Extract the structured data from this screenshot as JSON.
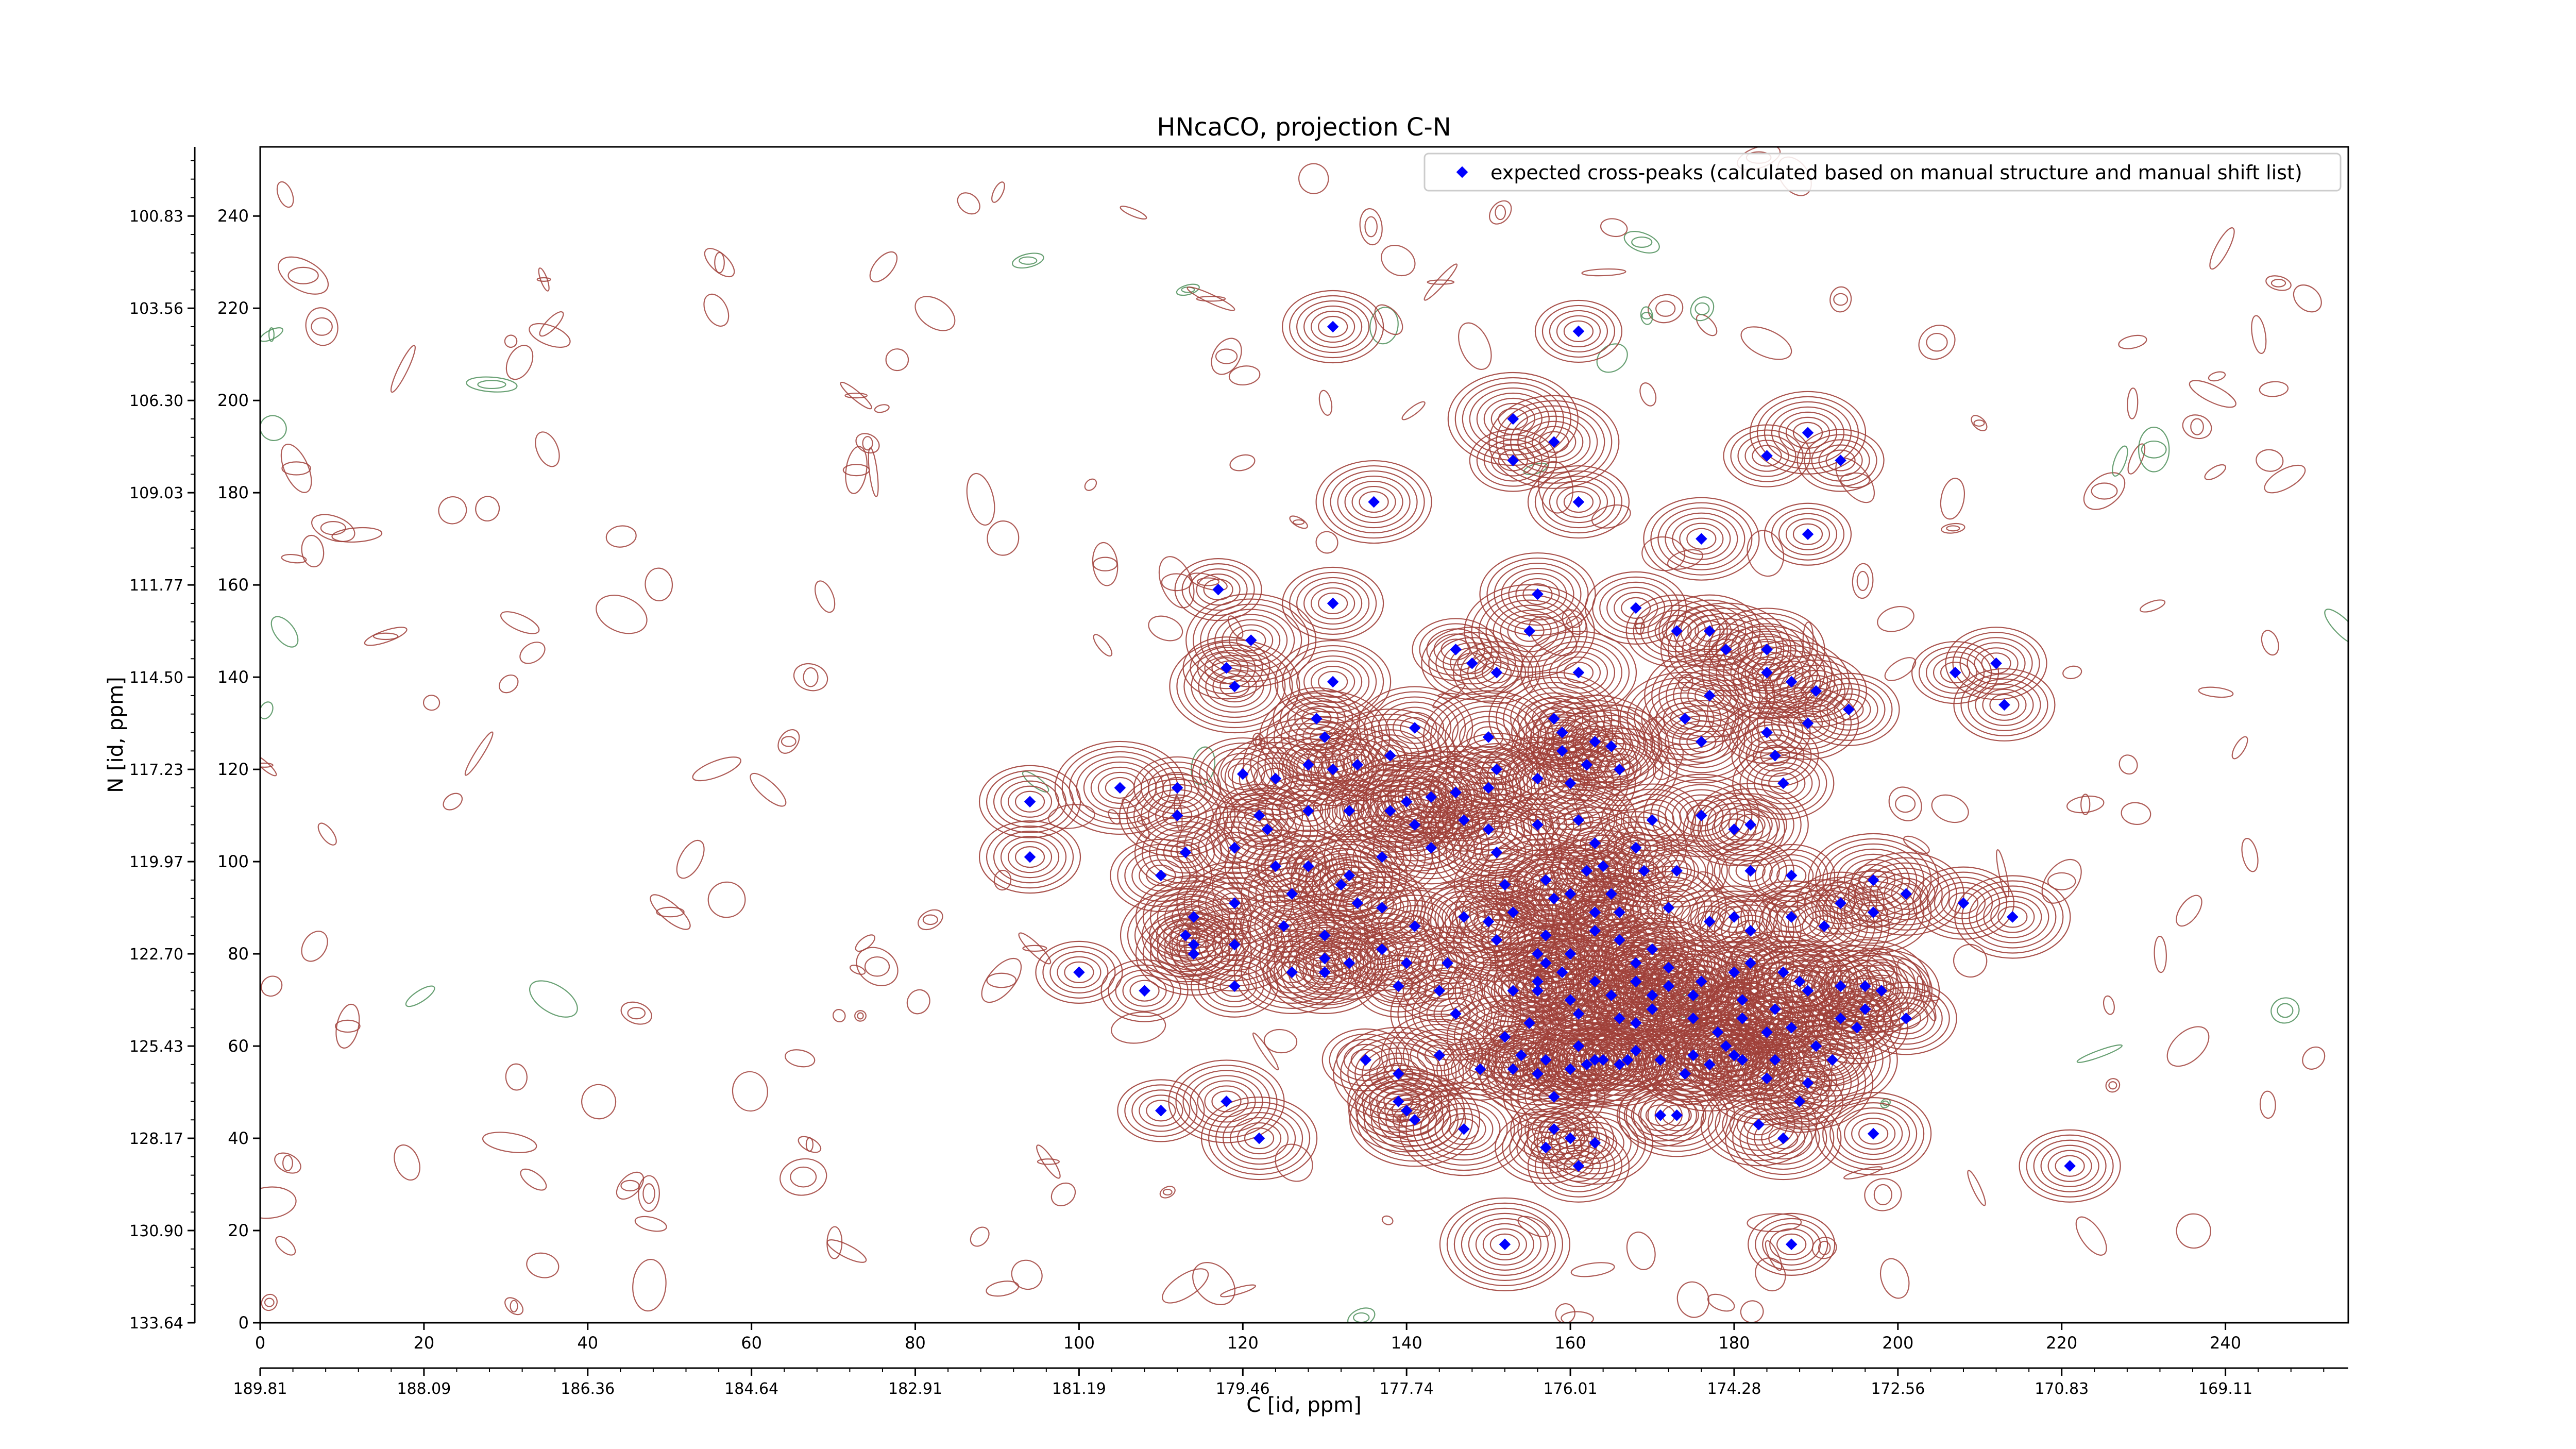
{
  "chart_data": {
    "type": "scatter",
    "title": "HNcaCO, projection C-N",
    "xlabel": "C [id, ppm]",
    "ylabel": "N [id, ppm]",
    "xlim": [
      0,
      255
    ],
    "ylim": [
      0,
      255
    ],
    "x_ticks": [
      "0",
      "20",
      "40",
      "60",
      "80",
      "100",
      "120",
      "140",
      "160",
      "180",
      "200",
      "220",
      "240"
    ],
    "x_ppm_ticks": [
      "189.81",
      "188.09",
      "186.36",
      "184.64",
      "182.91",
      "181.19",
      "179.46",
      "177.74",
      "176.01",
      "174.28",
      "172.56",
      "170.83",
      "169.11"
    ],
    "y_ticks": [
      "0",
      "20",
      "40",
      "60",
      "80",
      "100",
      "120",
      "140",
      "160",
      "180",
      "200",
      "220",
      "240"
    ],
    "y_ppm_ticks": [
      "133.64",
      "130.90",
      "128.17",
      "125.43",
      "122.70",
      "119.97",
      "117.23",
      "114.50",
      "111.77",
      "109.03",
      "106.30",
      "103.56",
      "100.83"
    ],
    "legend": {
      "position": "top-right",
      "entries": [
        "expected cross-peaks (calculated based on manual structure and manual shift list)"
      ]
    },
    "colors": {
      "points": "#0000ff",
      "contour_positive": "#a0403a",
      "contour_negative": "#4e8f5a"
    },
    "series": [
      {
        "name": "expected cross-peaks (calculated based on manual structure and manual shift list)",
        "points": [
          [
            161,
            215
          ],
          [
            131,
            216
          ],
          [
            153,
            196
          ],
          [
            158,
            191
          ],
          [
            153,
            187
          ],
          [
            161,
            178
          ],
          [
            136,
            178
          ],
          [
            189,
            193
          ],
          [
            184,
            188
          ],
          [
            193,
            187
          ],
          [
            189,
            171
          ],
          [
            176,
            170
          ],
          [
            117,
            159
          ],
          [
            131,
            156
          ],
          [
            156,
            158
          ],
          [
            168,
            155
          ],
          [
            121,
            148
          ],
          [
            118,
            142
          ],
          [
            119,
            138
          ],
          [
            131,
            139
          ],
          [
            146,
            146
          ],
          [
            151,
            141
          ],
          [
            155,
            150
          ],
          [
            148,
            143
          ],
          [
            161,
            141
          ],
          [
            173,
            150
          ],
          [
            177,
            150
          ],
          [
            179,
            146
          ],
          [
            184,
            146
          ],
          [
            184,
            141
          ],
          [
            187,
            139
          ],
          [
            190,
            137
          ],
          [
            189,
            130
          ],
          [
            194,
            133
          ],
          [
            207,
            141
          ],
          [
            212,
            143
          ],
          [
            213,
            134
          ],
          [
            174,
            131
          ],
          [
            177,
            136
          ],
          [
            184,
            128
          ],
          [
            185,
            123
          ],
          [
            186,
            117
          ],
          [
            176,
            126
          ],
          [
            141,
            129
          ],
          [
            150,
            127
          ],
          [
            158,
            131
          ],
          [
            129,
            131
          ],
          [
            120,
            119
          ],
          [
            124,
            118
          ],
          [
            128,
            121
          ],
          [
            130,
            127
          ],
          [
            131,
            120
          ],
          [
            134,
            121
          ],
          [
            138,
            123
          ],
          [
            151,
            120
          ],
          [
            156,
            118
          ],
          [
            150,
            116
          ],
          [
            160,
            117
          ],
          [
            162,
            121
          ],
          [
            163,
            126
          ],
          [
            165,
            125
          ],
          [
            166,
            120
          ],
          [
            159,
            128
          ],
          [
            159,
            124
          ],
          [
            105,
            116
          ],
          [
            94,
            113
          ],
          [
            94,
            101
          ],
          [
            112,
            116
          ],
          [
            112,
            110
          ],
          [
            122,
            110
          ],
          [
            128,
            111
          ],
          [
            133,
            111
          ],
          [
            138,
            111
          ],
          [
            140,
            113
          ],
          [
            143,
            114
          ],
          [
            146,
            115
          ],
          [
            147,
            109
          ],
          [
            141,
            108
          ],
          [
            156,
            108
          ],
          [
            161,
            109
          ],
          [
            163,
            104
          ],
          [
            168,
            103
          ],
          [
            170,
            109
          ],
          [
            176,
            110
          ],
          [
            180,
            107
          ],
          [
            182,
            108
          ],
          [
            113,
            102
          ],
          [
            110,
            97
          ],
          [
            119,
            103
          ],
          [
            123,
            107
          ],
          [
            124,
            99
          ],
          [
            128,
            99
          ],
          [
            133,
            97
          ],
          [
            137,
            101
          ],
          [
            143,
            103
          ],
          [
            150,
            107
          ],
          [
            151,
            102
          ],
          [
            152,
            95
          ],
          [
            157,
            96
          ],
          [
            158,
            92
          ],
          [
            162,
            98
          ],
          [
            160,
            93
          ],
          [
            164,
            99
          ],
          [
            165,
            93
          ],
          [
            169,
            98
          ],
          [
            173,
            98
          ],
          [
            182,
            98
          ],
          [
            187,
            97
          ],
          [
            197,
            96
          ],
          [
            197,
            89
          ],
          [
            201,
            93
          ],
          [
            208,
            91
          ],
          [
            214,
            88
          ],
          [
            114,
            88
          ],
          [
            119,
            91
          ],
          [
            126,
            93
          ],
          [
            132,
            95
          ],
          [
            134,
            91
          ],
          [
            137,
            90
          ],
          [
            141,
            86
          ],
          [
            147,
            88
          ],
          [
            150,
            87
          ],
          [
            153,
            89
          ],
          [
            157,
            84
          ],
          [
            163,
            89
          ],
          [
            166,
            89
          ],
          [
            172,
            90
          ],
          [
            177,
            87
          ],
          [
            180,
            88
          ],
          [
            182,
            85
          ],
          [
            187,
            88
          ],
          [
            191,
            86
          ],
          [
            193,
            91
          ],
          [
            114,
            82
          ],
          [
            114,
            80
          ],
          [
            113,
            84
          ],
          [
            119,
            82
          ],
          [
            125,
            86
          ],
          [
            130,
            79
          ],
          [
            130,
            84
          ],
          [
            137,
            81
          ],
          [
            140,
            78
          ],
          [
            145,
            78
          ],
          [
            151,
            83
          ],
          [
            156,
            80
          ],
          [
            157,
            78
          ],
          [
            160,
            80
          ],
          [
            163,
            85
          ],
          [
            166,
            83
          ],
          [
            168,
            78
          ],
          [
            170,
            81
          ],
          [
            172,
            77
          ],
          [
            176,
            74
          ],
          [
            180,
            76
          ],
          [
            182,
            78
          ],
          [
            186,
            76
          ],
          [
            188,
            74
          ],
          [
            196,
            73
          ],
          [
            198,
            72
          ],
          [
            100,
            76
          ],
          [
            108,
            72
          ],
          [
            119,
            73
          ],
          [
            126,
            76
          ],
          [
            130,
            76
          ],
          [
            133,
            78
          ],
          [
            139,
            73
          ],
          [
            144,
            72
          ],
          [
            153,
            72
          ],
          [
            156,
            74
          ],
          [
            156,
            72
          ],
          [
            159,
            76
          ],
          [
            160,
            70
          ],
          [
            163,
            74
          ],
          [
            165,
            71
          ],
          [
            168,
            74
          ],
          [
            170,
            71
          ],
          [
            172,
            73
          ],
          [
            175,
            71
          ],
          [
            181,
            70
          ],
          [
            185,
            68
          ],
          [
            189,
            72
          ],
          [
            193,
            73
          ],
          [
            196,
            68
          ],
          [
            201,
            66
          ],
          [
            195,
            64
          ],
          [
            146,
            67
          ],
          [
            155,
            65
          ],
          [
            161,
            67
          ],
          [
            166,
            66
          ],
          [
            168,
            65
          ],
          [
            170,
            68
          ],
          [
            175,
            66
          ],
          [
            178,
            63
          ],
          [
            181,
            66
          ],
          [
            184,
            63
          ],
          [
            187,
            64
          ],
          [
            193,
            66
          ],
          [
            152,
            62
          ],
          [
            154,
            58
          ],
          [
            157,
            57
          ],
          [
            161,
            60
          ],
          [
            163,
            57
          ],
          [
            164,
            57
          ],
          [
            166,
            56
          ],
          [
            168,
            59
          ],
          [
            171,
            57
          ],
          [
            175,
            58
          ],
          [
            177,
            56
          ],
          [
            180,
            58
          ],
          [
            185,
            57
          ],
          [
            190,
            60
          ],
          [
            192,
            57
          ],
          [
            179,
            60
          ],
          [
            135,
            57
          ],
          [
            139,
            54
          ],
          [
            144,
            58
          ],
          [
            149,
            55
          ],
          [
            153,
            55
          ],
          [
            156,
            54
          ],
          [
            160,
            55
          ],
          [
            162,
            56
          ],
          [
            167,
            57
          ],
          [
            174,
            54
          ],
          [
            181,
            57
          ],
          [
            184,
            53
          ],
          [
            189,
            52
          ],
          [
            188,
            48
          ],
          [
            110,
            46
          ],
          [
            118,
            48
          ],
          [
            122,
            40
          ],
          [
            139,
            48
          ],
          [
            140,
            46
          ],
          [
            141,
            44
          ],
          [
            147,
            42
          ],
          [
            158,
            42
          ],
          [
            160,
            40
          ],
          [
            163,
            39
          ],
          [
            173,
            45
          ],
          [
            183,
            43
          ],
          [
            186,
            40
          ],
          [
            197,
            41
          ],
          [
            221,
            34
          ],
          [
            157,
            38
          ],
          [
            171,
            45
          ],
          [
            158,
            49
          ],
          [
            161,
            34
          ],
          [
            152,
            17
          ],
          [
            187,
            17
          ]
        ]
      }
    ]
  }
}
